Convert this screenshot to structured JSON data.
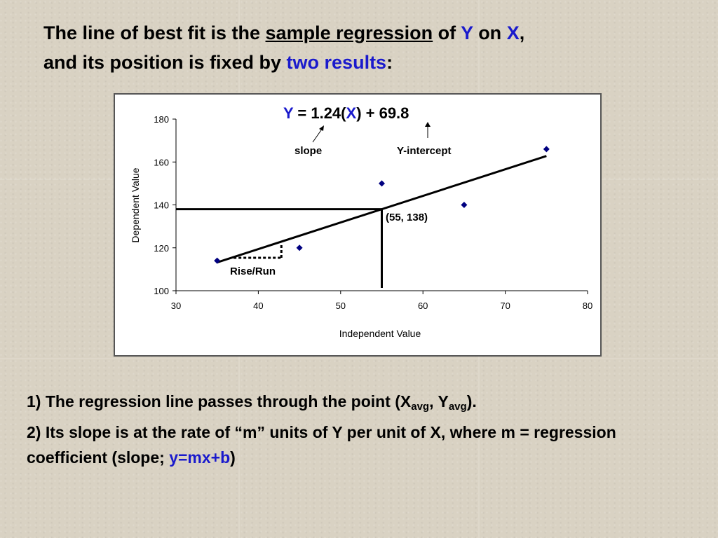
{
  "title": {
    "part1": "The line of best fit is the ",
    "underlined": "sample regression",
    "part2": " of ",
    "y": "Y",
    "part3": " on ",
    "x": "X",
    "part4": ",",
    "line2_part1": "and its position is fixed by ",
    "two_results": "two results",
    "line2_part2": ":"
  },
  "chart_data": {
    "type": "scatter",
    "xlabel": "Independent Value",
    "ylabel": "Dependent Value",
    "xlim": [
      30,
      80
    ],
    "ylim": [
      100,
      180
    ],
    "xticks": [
      "30",
      "40",
      "50",
      "60",
      "70",
      "80"
    ],
    "yticks": [
      "100",
      "120",
      "140",
      "160",
      "180"
    ],
    "points": [
      {
        "x": 35,
        "y": 114
      },
      {
        "x": 45,
        "y": 120
      },
      {
        "x": 55,
        "y": 150
      },
      {
        "x": 65,
        "y": 140
      },
      {
        "x": 75,
        "y": 166
      }
    ],
    "regression": {
      "slope": 1.24,
      "intercept": 69.8,
      "x_start": 35,
      "x_end": 75
    },
    "equation": {
      "y": "Y",
      "eq": " = 1.24(",
      "x": "X",
      "rest": ") + 69.8"
    },
    "mean_point": {
      "x": 55,
      "y": 138,
      "label": "(55, 138)"
    },
    "annotations": {
      "slope": "slope",
      "intercept": "Y-intercept",
      "rise_run": "Rise/Run"
    },
    "colors": {
      "points": "#000080",
      "equation_vars": "#1a1acc"
    }
  },
  "bullets": {
    "b1_part1": "1) The regression line passes through the point (X",
    "b1_sub1": "avg",
    "b1_part2": ", Y",
    "b1_sub2": "avg",
    "b1_part3": ").",
    "b2_part1": "2) Its slope is at the rate of “m” units of Y per unit of X, where m = regression coefficient (slope; ",
    "b2_formula": "y=mx+b",
    "b2_part2": ")"
  }
}
